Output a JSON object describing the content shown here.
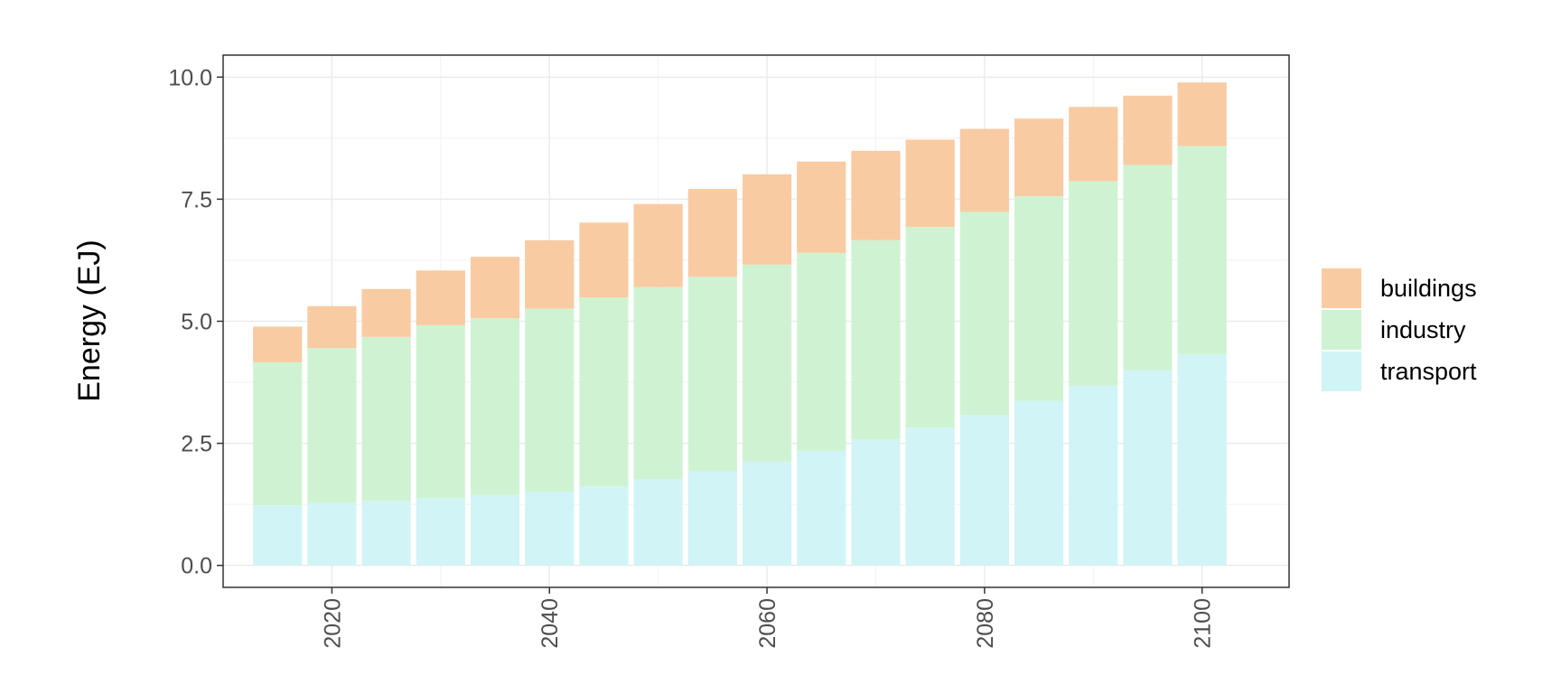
{
  "chart_data": {
    "type": "bar",
    "stacked": true,
    "title": "",
    "xlabel": "",
    "ylabel": "Energy (EJ)",
    "x": [
      2015,
      2020,
      2025,
      2030,
      2035,
      2040,
      2045,
      2050,
      2055,
      2060,
      2065,
      2070,
      2075,
      2080,
      2085,
      2090,
      2095,
      2100
    ],
    "xlim": [
      2010,
      2108
    ],
    "ylim": [
      -0.45,
      10.45
    ],
    "x_ticks": [
      2020,
      2040,
      2060,
      2080,
      2100
    ],
    "y_ticks": [
      0.0,
      2.5,
      5.0,
      7.5,
      10.0
    ],
    "x_tick_labels": [
      "2020",
      "2040",
      "2060",
      "2080",
      "2100"
    ],
    "y_tick_labels": [
      "0.0",
      "2.5",
      "5.0",
      "7.5",
      "10.0"
    ],
    "series": [
      {
        "name": "transport",
        "color": "#D1F4F6",
        "values": [
          1.23,
          1.28,
          1.32,
          1.38,
          1.44,
          1.51,
          1.62,
          1.77,
          1.93,
          2.13,
          2.35,
          2.58,
          2.82,
          3.08,
          3.37,
          3.68,
          4.0,
          4.33
        ]
      },
      {
        "name": "industry",
        "color": "#CFF3D2",
        "values": [
          2.93,
          3.17,
          3.36,
          3.54,
          3.62,
          3.75,
          3.87,
          3.93,
          3.98,
          4.03,
          4.05,
          4.08,
          4.11,
          4.16,
          4.19,
          4.19,
          4.2,
          4.26
        ]
      },
      {
        "name": "buildings",
        "color": "#F9CBA2",
        "values": [
          0.73,
          0.86,
          0.98,
          1.12,
          1.26,
          1.4,
          1.53,
          1.7,
          1.8,
          1.85,
          1.87,
          1.83,
          1.79,
          1.7,
          1.59,
          1.52,
          1.42,
          1.3
        ]
      }
    ],
    "legend_order": [
      "buildings",
      "industry",
      "transport"
    ],
    "legend_position": "right",
    "grid": true
  }
}
